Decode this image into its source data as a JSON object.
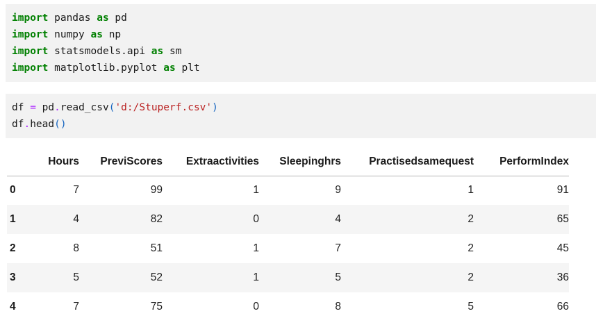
{
  "colors": {
    "code_cell_background": "#f2f2f2",
    "keyword": "#008000",
    "operator": "#AA22FF",
    "string": "#BA2121",
    "bracket": "#1565C0",
    "code_text": "#1a1a1a",
    "table_stripe": "#f5f5f5",
    "header_border": "#b3b3b3"
  },
  "cells": [
    {
      "name": "imports",
      "lines": [
        [
          {
            "t": "import",
            "s": "kw"
          },
          {
            "t": " pandas ",
            "s": "pl"
          },
          {
            "t": "as",
            "s": "kw"
          },
          {
            "t": " pd",
            "s": "pl"
          }
        ],
        [
          {
            "t": "import",
            "s": "kw"
          },
          {
            "t": " numpy ",
            "s": "pl"
          },
          {
            "t": "as",
            "s": "kw"
          },
          {
            "t": " np",
            "s": "pl"
          }
        ],
        [
          {
            "t": "import",
            "s": "kw"
          },
          {
            "t": " statsmodels.api ",
            "s": "pl"
          },
          {
            "t": "as",
            "s": "kw"
          },
          {
            "t": " sm",
            "s": "pl"
          }
        ],
        [
          {
            "t": "import",
            "s": "kw"
          },
          {
            "t": " matplotlib.pyplot ",
            "s": "pl"
          },
          {
            "t": "as",
            "s": "kw"
          },
          {
            "t": " plt",
            "s": "pl"
          }
        ]
      ]
    },
    {
      "name": "load-data",
      "lines": [
        [
          {
            "t": "df ",
            "s": "pl"
          },
          {
            "t": "=",
            "s": "op"
          },
          {
            "t": " pd",
            "s": "pl"
          },
          {
            "t": ".",
            "s": "op"
          },
          {
            "t": "read_csv",
            "s": "pl"
          },
          {
            "t": "(",
            "s": "br"
          },
          {
            "t": "'d:/Stuperf.csv'",
            "s": "str"
          },
          {
            "t": ")",
            "s": "br"
          }
        ],
        [
          {
            "t": "df",
            "s": "pl"
          },
          {
            "t": ".",
            "s": "op"
          },
          {
            "t": "head",
            "s": "pl"
          },
          {
            "t": "()",
            "s": "br"
          }
        ]
      ]
    }
  ],
  "table": {
    "index_label": "",
    "columns": [
      "Hours",
      "PreviScores",
      "Extraactivities",
      "Sleepinghrs",
      "Practisedsamequest",
      "PerformIndex"
    ],
    "rows": [
      {
        "index": "0",
        "values": [
          7,
          99,
          1,
          9,
          1,
          91
        ]
      },
      {
        "index": "1",
        "values": [
          4,
          82,
          0,
          4,
          2,
          65
        ]
      },
      {
        "index": "2",
        "values": [
          8,
          51,
          1,
          7,
          2,
          45
        ]
      },
      {
        "index": "3",
        "values": [
          5,
          52,
          1,
          5,
          2,
          36
        ]
      },
      {
        "index": "4",
        "values": [
          7,
          75,
          0,
          8,
          5,
          66
        ]
      }
    ]
  }
}
